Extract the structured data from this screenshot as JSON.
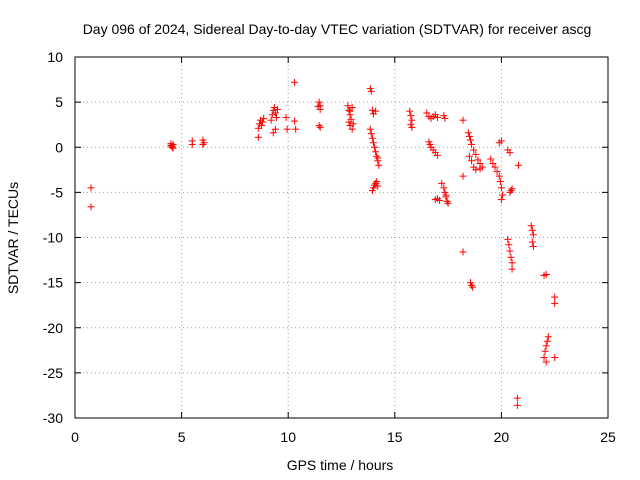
{
  "chart_data": {
    "type": "scatter",
    "title": "Day 096 of 2024, Sidereal Day-to-day VTEC variation (SDTVAR) for receiver ascg",
    "xlabel": "GPS time / hours",
    "ylabel": "SDTVAR / TECUs",
    "xlim": [
      0,
      25
    ],
    "ylim": [
      -30,
      10
    ],
    "xticks": [
      0,
      5,
      10,
      15,
      20,
      25
    ],
    "yticks": [
      10,
      5,
      0,
      -5,
      -10,
      -15,
      -20,
      -25,
      -30
    ],
    "grid": true,
    "marker": "plus",
    "color": "#ff0000",
    "series": [
      {
        "name": "SDTVAR",
        "points": [
          [
            0.75,
            -4.5
          ],
          [
            0.75,
            -6.6
          ],
          [
            4.5,
            0.4
          ],
          [
            4.55,
            0.1
          ],
          [
            4.6,
            -0.1
          ],
          [
            4.5,
            0.2
          ],
          [
            4.6,
            0.3
          ],
          [
            4.55,
            0.0
          ],
          [
            5.5,
            0.7
          ],
          [
            5.5,
            0.3
          ],
          [
            6.0,
            0.8
          ],
          [
            6.0,
            0.3
          ],
          [
            6.05,
            0.5
          ],
          [
            8.6,
            2.1
          ],
          [
            8.65,
            2.6
          ],
          [
            8.7,
            3.0
          ],
          [
            8.75,
            2.4
          ],
          [
            8.8,
            2.8
          ],
          [
            8.85,
            3.2
          ],
          [
            8.6,
            1.1
          ],
          [
            9.2,
            3.0
          ],
          [
            9.25,
            3.6
          ],
          [
            9.3,
            4.1
          ],
          [
            9.35,
            4.4
          ],
          [
            9.4,
            3.8
          ],
          [
            9.45,
            3.3
          ],
          [
            9.5,
            4.2
          ],
          [
            9.3,
            1.6
          ],
          [
            9.4,
            2.0
          ],
          [
            9.9,
            3.3
          ],
          [
            9.95,
            2.0
          ],
          [
            10.3,
            2.9
          ],
          [
            10.35,
            2.0
          ],
          [
            10.3,
            7.2
          ],
          [
            11.4,
            4.5
          ],
          [
            11.45,
            5.0
          ],
          [
            11.5,
            4.6
          ],
          [
            11.5,
            4.2
          ],
          [
            11.45,
            2.4
          ],
          [
            11.5,
            2.2
          ],
          [
            12.8,
            4.6
          ],
          [
            12.85,
            4.1
          ],
          [
            12.9,
            3.6
          ],
          [
            12.95,
            3.1
          ],
          [
            12.85,
            2.8
          ],
          [
            12.9,
            2.4
          ],
          [
            13.0,
            2.0
          ],
          [
            13.05,
            2.6
          ],
          [
            13.0,
            4.4
          ],
          [
            12.9,
            4.0
          ],
          [
            13.85,
            6.5
          ],
          [
            13.9,
            6.2
          ],
          [
            13.85,
            2.0
          ],
          [
            13.9,
            1.5
          ],
          [
            13.95,
            1.0
          ],
          [
            14.0,
            0.5
          ],
          [
            14.05,
            0.0
          ],
          [
            14.1,
            -0.5
          ],
          [
            14.15,
            -1.0
          ],
          [
            14.2,
            -1.5
          ],
          [
            14.25,
            -2.0
          ],
          [
            14.2,
            -1.2
          ],
          [
            14.1,
            4.0
          ],
          [
            14.0,
            3.7
          ],
          [
            13.95,
            4.1
          ],
          [
            13.95,
            -4.8
          ],
          [
            14.0,
            -4.5
          ],
          [
            14.05,
            -4.2
          ],
          [
            14.1,
            -4.0
          ],
          [
            14.15,
            -3.8
          ],
          [
            14.2,
            -4.3
          ],
          [
            15.7,
            4.0
          ],
          [
            15.75,
            3.5
          ],
          [
            15.8,
            3.0
          ],
          [
            15.75,
            2.5
          ],
          [
            15.8,
            2.2
          ],
          [
            16.5,
            3.8
          ],
          [
            16.6,
            3.4
          ],
          [
            16.7,
            3.2
          ],
          [
            16.8,
            3.4
          ],
          [
            16.9,
            3.6
          ],
          [
            17.0,
            3.3
          ],
          [
            17.3,
            3.5
          ],
          [
            17.35,
            3.2
          ],
          [
            16.6,
            0.6
          ],
          [
            16.65,
            0.3
          ],
          [
            16.7,
            0.0
          ],
          [
            16.8,
            -0.3
          ],
          [
            16.9,
            -0.6
          ],
          [
            17.0,
            -0.9
          ],
          [
            16.9,
            -5.8
          ],
          [
            17.0,
            -5.7
          ],
          [
            17.1,
            -5.9
          ],
          [
            17.2,
            -4.0
          ],
          [
            17.3,
            -4.5
          ],
          [
            17.35,
            -5.0
          ],
          [
            17.4,
            -5.5
          ],
          [
            17.45,
            -6.0
          ],
          [
            17.5,
            -6.2
          ],
          [
            17.4,
            -5.3
          ],
          [
            18.2,
            3.0
          ],
          [
            18.45,
            1.6
          ],
          [
            18.5,
            1.2
          ],
          [
            18.55,
            0.8
          ],
          [
            18.6,
            0.3
          ],
          [
            18.7,
            -0.3
          ],
          [
            18.8,
            -0.8
          ],
          [
            18.9,
            -1.4
          ],
          [
            19.0,
            -1.8
          ],
          [
            19.1,
            -2.2
          ],
          [
            19.0,
            -2.4
          ],
          [
            18.8,
            -2.5
          ],
          [
            18.7,
            -2.2
          ],
          [
            18.6,
            -1.5
          ],
          [
            18.5,
            -1.0
          ],
          [
            18.2,
            -3.2
          ],
          [
            18.2,
            -11.6
          ],
          [
            18.55,
            -15.0
          ],
          [
            18.6,
            -15.3
          ],
          [
            18.65,
            -15.5
          ],
          [
            19.5,
            -1.3
          ],
          [
            19.6,
            -1.8
          ],
          [
            19.7,
            -2.2
          ],
          [
            19.8,
            -2.7
          ],
          [
            19.9,
            -3.2
          ],
          [
            19.95,
            -3.8
          ],
          [
            20.0,
            -4.5
          ],
          [
            20.05,
            -5.3
          ],
          [
            20.0,
            -5.8
          ],
          [
            19.9,
            0.5
          ],
          [
            20.0,
            0.7
          ],
          [
            20.3,
            -0.3
          ],
          [
            20.4,
            -0.6
          ],
          [
            20.5,
            -4.6
          ],
          [
            20.45,
            -4.8
          ],
          [
            20.4,
            -5.0
          ],
          [
            20.8,
            -2.0
          ],
          [
            20.3,
            -10.2
          ],
          [
            20.35,
            -10.8
          ],
          [
            20.4,
            -11.5
          ],
          [
            20.45,
            -12.2
          ],
          [
            20.5,
            -12.8
          ],
          [
            20.5,
            -13.5
          ],
          [
            20.75,
            -27.8
          ],
          [
            20.75,
            -28.6
          ],
          [
            21.4,
            -8.7
          ],
          [
            21.45,
            -9.2
          ],
          [
            21.5,
            -9.7
          ],
          [
            21.45,
            -10.5
          ],
          [
            21.5,
            -11.0
          ],
          [
            22.0,
            -14.2
          ],
          [
            22.1,
            -14.1
          ],
          [
            22.0,
            -23.3
          ],
          [
            22.05,
            -22.6
          ],
          [
            22.1,
            -22.0
          ],
          [
            22.15,
            -21.5
          ],
          [
            22.2,
            -21.0
          ],
          [
            22.1,
            -23.8
          ],
          [
            22.5,
            -23.3
          ],
          [
            22.5,
            -16.6
          ],
          [
            22.5,
            -17.3
          ]
        ]
      }
    ]
  }
}
